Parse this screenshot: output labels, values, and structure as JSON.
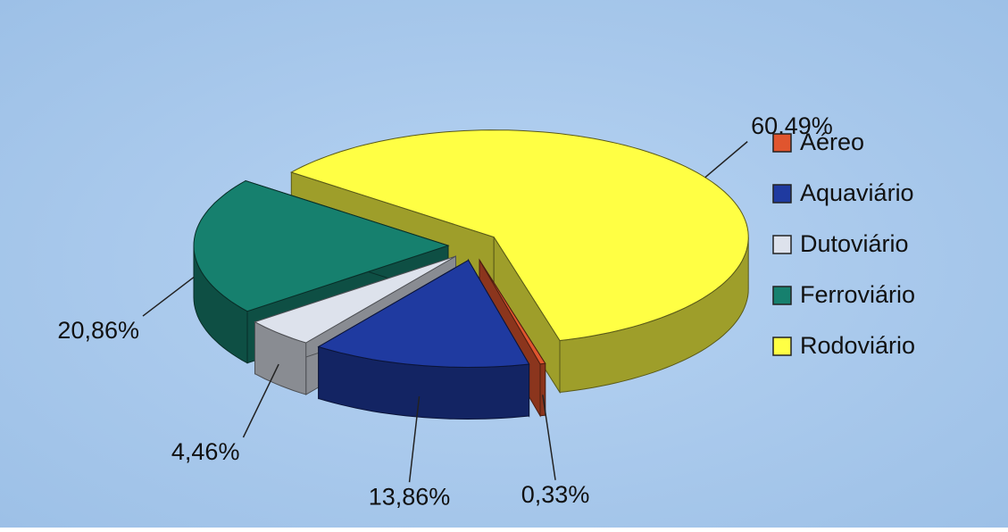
{
  "chart_data": {
    "type": "pie3d",
    "categories": [
      "Aéreo",
      "Aquaviário",
      "Dutoviário",
      "Ferroviário",
      "Rodoviário"
    ],
    "values": [
      0.33,
      13.86,
      4.46,
      20.86,
      60.49
    ],
    "value_labels": [
      "0,33%",
      "13,86%",
      "4,46%",
      "20,86%",
      "60,49%"
    ],
    "colors": [
      "#e0552e",
      "#1f3aa0",
      "#dde2ec",
      "#16806e",
      "#ffff44"
    ],
    "legend": "right"
  }
}
